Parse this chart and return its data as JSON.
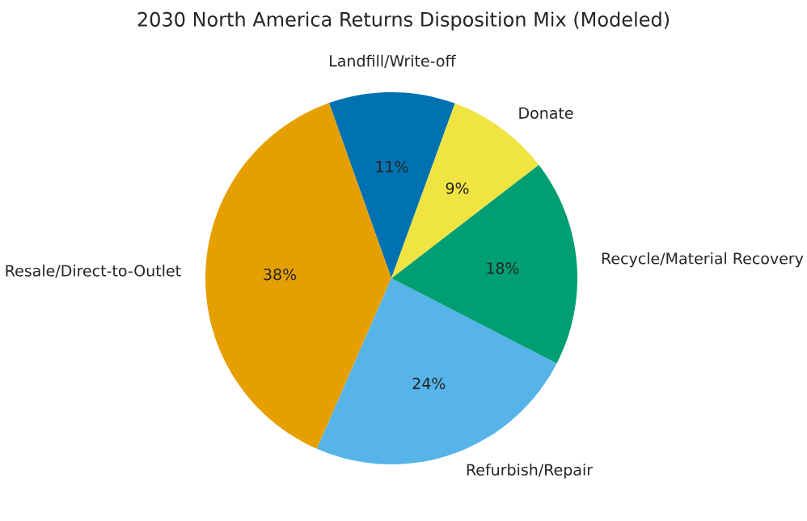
{
  "chart_data": {
    "type": "pie",
    "title": "2030 North America Returns Disposition Mix (Modeled)",
    "categories": [
      "Landfill/Write-off",
      "Resale/Direct-to-Outlet",
      "Refurbish/Repair",
      "Recycle/Material Recovery",
      "Donate"
    ],
    "values": [
      11,
      38,
      24,
      18,
      9
    ],
    "colors": [
      "#0072b2",
      "#e69f00",
      "#56b4e9",
      "#009e73",
      "#f0e442"
    ],
    "value_labels": [
      "11%",
      "38%",
      "24%",
      "18%",
      "9%"
    ]
  }
}
